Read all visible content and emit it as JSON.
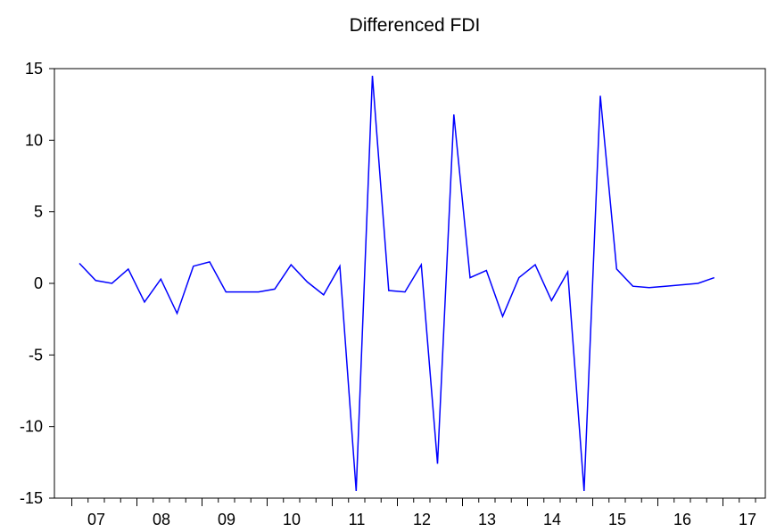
{
  "chart_data": {
    "type": "line",
    "title": "Differenced FDI",
    "xlabel": "",
    "ylabel": "",
    "ylim": [
      -15,
      15
    ],
    "yticks": [
      15,
      10,
      5,
      0,
      -5,
      -10,
      -15
    ],
    "year_labels": [
      "07",
      "08",
      "09",
      "10",
      "11",
      "12",
      "13",
      "14",
      "15",
      "16",
      "17"
    ],
    "x_frequency": "quarterly",
    "series": [
      {
        "color": "#0000ff",
        "values": [
          1.4,
          0.2,
          0.0,
          1.0,
          -1.3,
          0.3,
          -2.1,
          1.2,
          1.5,
          -0.6,
          -0.6,
          -0.6,
          -0.4,
          1.3,
          0.1,
          -0.8,
          1.2,
          -14.5,
          14.5,
          -0.5,
          -0.6,
          1.3,
          -12.6,
          11.8,
          0.4,
          0.9,
          -2.3,
          0.4,
          1.3,
          -1.2,
          0.8,
          -14.5,
          13.1,
          1.0,
          -0.2,
          -0.3,
          -0.2,
          -0.1,
          0.0,
          0.4
        ]
      }
    ]
  }
}
